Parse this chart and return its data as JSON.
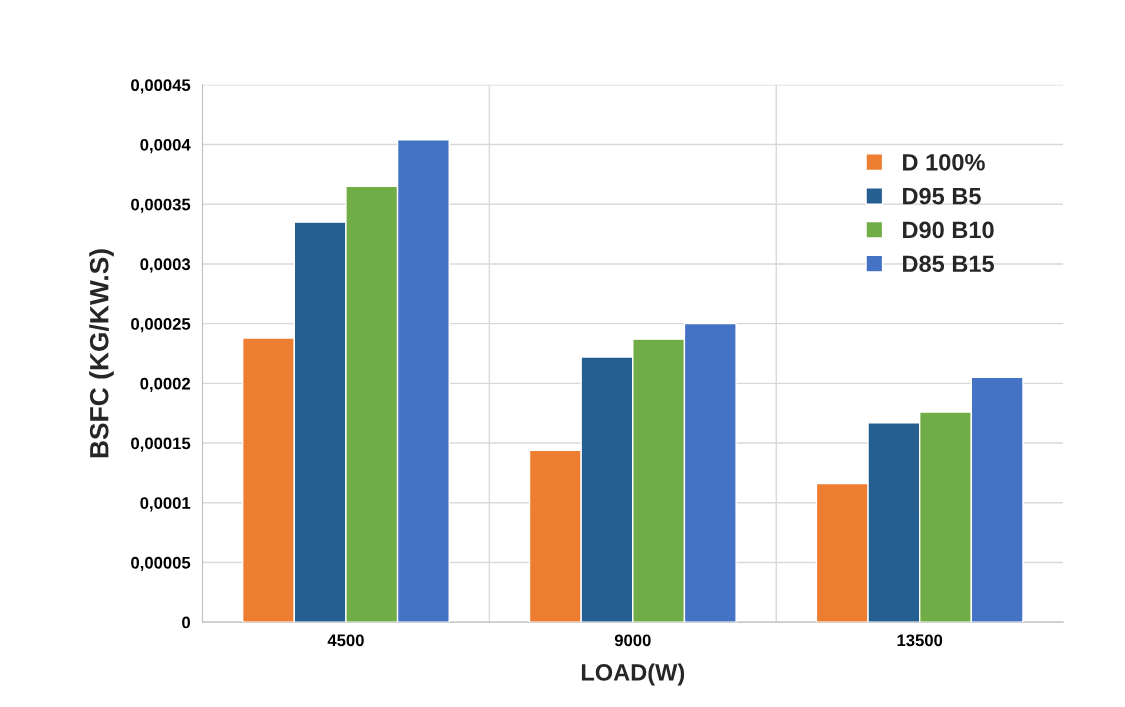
{
  "chart_data": {
    "type": "bar",
    "xlabel": "LOAD(W)",
    "ylabel": "BSFC (KG/KW.S)",
    "categories": [
      "4500",
      "9000",
      "13500"
    ],
    "series": [
      {
        "name": "D 100%",
        "color": "#ed7d31",
        "values": [
          0.000238,
          0.000144,
          0.000116
        ]
      },
      {
        "name": "D95 B5",
        "color": "#255e91",
        "values": [
          0.000335,
          0.000222,
          0.000167
        ]
      },
      {
        "name": "D90 B10",
        "color": "#70ad47",
        "values": [
          0.000365,
          0.000237,
          0.000176
        ]
      },
      {
        "name": "D85 B15",
        "color": "#4472c4",
        "values": [
          0.000404,
          0.00025,
          0.000205
        ]
      }
    ],
    "ylim": [
      0,
      0.00045
    ],
    "yticks": [
      0,
      {
        "value": 5e-05,
        "label": "0,00005"
      },
      {
        "value": 0.0001,
        "label": "0,0001"
      },
      {
        "value": 0.00015,
        "label": "0,00015"
      },
      {
        "value": 0.0002,
        "label": "0,0002"
      },
      {
        "value": 0.00025,
        "label": "0,00025"
      },
      {
        "value": 0.0003,
        "label": "0,0003"
      },
      {
        "value": 0.00035,
        "label": "0,00035"
      },
      {
        "value": 0.0004,
        "label": "0,0004"
      },
      {
        "value": 0.00045,
        "label": "0,00045"
      }
    ],
    "grid": true,
    "legend": "top right"
  }
}
